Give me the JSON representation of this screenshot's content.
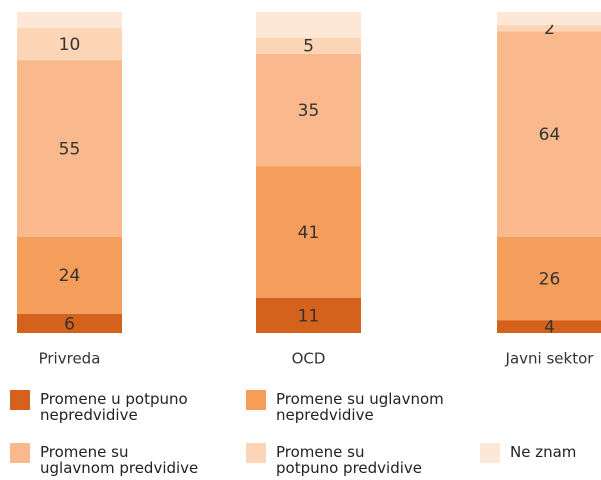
{
  "chart_data": {
    "type": "stacked_bar",
    "categories": [
      "Privreda",
      "OCD",
      "Javni sektor"
    ],
    "ylim": [
      0,
      100
    ],
    "series": [
      {
        "name": "Promene u potpuno\nnepredvidive",
        "color": "#d4621d",
        "values": [
          6,
          11,
          4
        ]
      },
      {
        "name": "Promene su uglavnom\nnepredvidive",
        "color": "#f59d5b",
        "values": [
          24,
          41,
          26
        ]
      },
      {
        "name": "Promene su\nuglavnom predvidive",
        "color": "#f9b98c",
        "values": [
          55,
          35,
          64
        ]
      },
      {
        "name": "Promene su\npotpuno predvidive",
        "color": "#fcd5b6",
        "values": [
          10,
          5,
          2
        ]
      },
      {
        "name": "Ne znam",
        "color": "#fde8d7",
        "values": [
          5,
          8,
          4
        ],
        "value_labels": [
          null,
          null,
          null
        ]
      }
    ]
  }
}
